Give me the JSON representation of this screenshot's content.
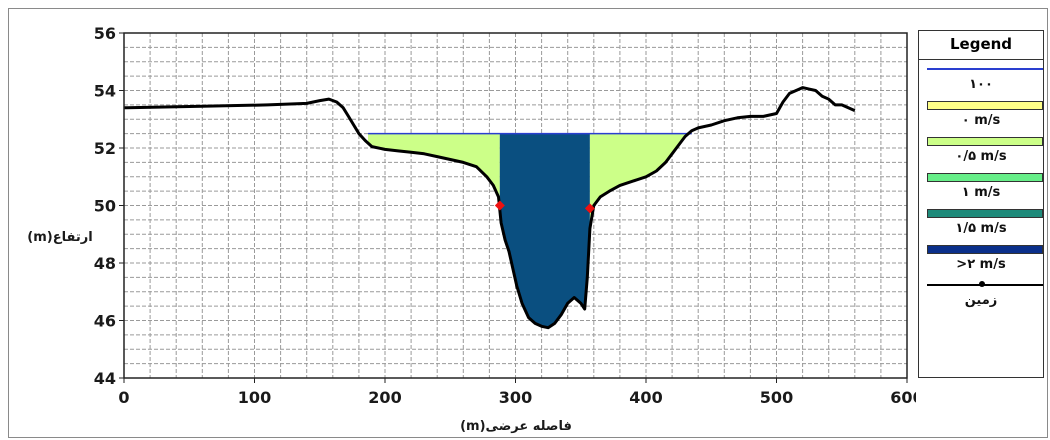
{
  "chart_data": {
    "type": "area",
    "xlabel": "فاصله عرضی(m)",
    "ylabel": "ارتفاع(m)",
    "xlim": [
      0,
      600
    ],
    "ylim": [
      44,
      56
    ],
    "x_ticks": [
      "0",
      "100",
      "200",
      "300",
      "400",
      "500",
      "600"
    ],
    "y_ticks": [
      "44",
      "46",
      "48",
      "50",
      "52",
      "54",
      "56"
    ],
    "grid": true,
    "legend_position": "right",
    "water_surface_elevation": 52.5,
    "bank_stations": [
      {
        "x": 288,
        "y": 50.0
      },
      {
        "x": 357,
        "y": 49.9
      }
    ],
    "velocity_zones": [
      {
        "x_start": 187,
        "x_end": 288,
        "legend_index": 2
      },
      {
        "x_start": 288,
        "x_end": 357,
        "legend_index": 5
      },
      {
        "x_start": 357,
        "x_end": 435,
        "legend_index": 2
      }
    ],
    "ground": {
      "name": "زمین",
      "x": [
        0,
        60,
        110,
        140,
        150,
        157,
        163,
        168,
        172,
        176,
        180,
        185,
        190,
        200,
        210,
        220,
        230,
        240,
        250,
        260,
        270,
        278,
        283,
        287,
        289,
        292,
        295,
        298,
        301,
        305,
        310,
        315,
        320,
        325,
        330,
        335,
        340,
        345,
        350,
        353,
        355,
        357,
        360,
        365,
        372,
        380,
        390,
        400,
        408,
        415,
        420,
        425,
        430,
        435,
        440,
        450,
        460,
        470,
        480,
        490,
        500,
        505,
        510,
        515,
        520,
        525,
        530,
        535,
        540,
        545,
        550,
        555,
        560
      ],
      "y": [
        53.4,
        53.45,
        53.5,
        53.55,
        53.65,
        53.7,
        53.6,
        53.4,
        53.1,
        52.8,
        52.5,
        52.25,
        52.05,
        51.95,
        51.9,
        51.85,
        51.8,
        51.7,
        51.6,
        51.5,
        51.35,
        51.0,
        50.7,
        50.3,
        49.4,
        48.8,
        48.4,
        47.8,
        47.2,
        46.6,
        46.1,
        45.9,
        45.8,
        45.75,
        45.9,
        46.2,
        46.6,
        46.8,
        46.6,
        46.4,
        47.5,
        49.2,
        50.0,
        50.3,
        50.5,
        50.7,
        50.85,
        51.0,
        51.2,
        51.5,
        51.8,
        52.1,
        52.4,
        52.6,
        52.7,
        52.8,
        52.95,
        53.05,
        53.1,
        53.1,
        53.2,
        53.6,
        53.9,
        54.0,
        54.1,
        54.05,
        54.0,
        53.8,
        53.7,
        53.5,
        53.5,
        53.4,
        53.3
      ]
    }
  },
  "legend": {
    "title": "Legend",
    "items": [
      {
        "kind": "line",
        "label": "۱۰۰",
        "color": "#2a3fd0"
      },
      {
        "kind": "fill",
        "label": "۰ m/s",
        "color": "#ffff88"
      },
      {
        "kind": "fill",
        "label": "۰/۵ m/s",
        "color": "#ccff88"
      },
      {
        "kind": "fill",
        "label": "۱ m/s",
        "color": "#66ee88"
      },
      {
        "kind": "fill",
        "label": "۱/۵ m/s",
        "color": "#1e8a7a"
      },
      {
        "kind": "fill",
        "label": ">۲ m/s",
        "color": "#0a2f8a"
      },
      {
        "kind": "ground",
        "label": "زمین",
        "color": "#000000"
      }
    ]
  },
  "colors": {
    "water_surface": "#2a3fd0",
    "channel_fill": "#0a4f80",
    "overbank_fill": "#ccff88",
    "bank_marker": "#ee1111",
    "ground_line": "#000000",
    "grid": "#9a9a9a"
  }
}
